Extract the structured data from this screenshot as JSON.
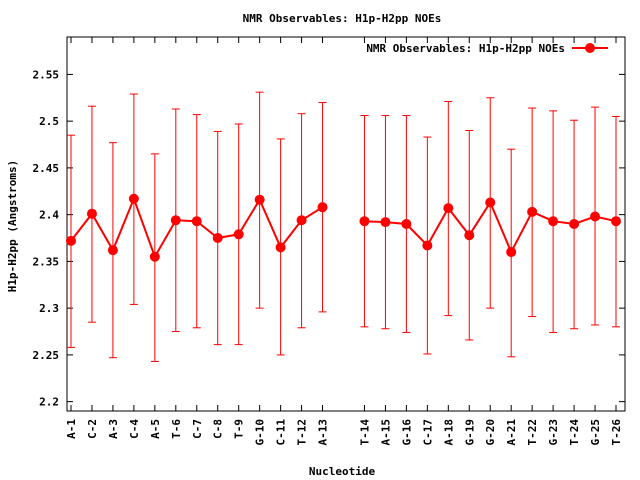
{
  "chart_data": {
    "type": "line",
    "title": "NMR Observables: H1p-H2pp NOEs",
    "xlabel": "Nucleotide",
    "ylabel": "H1p-H2pp (Angstroms)",
    "ylim": [
      2.19,
      2.59
    ],
    "yticks": [
      "2.2",
      "2.25",
      "2.3",
      "2.35",
      "2.4",
      "2.45",
      "2.5",
      "2.55"
    ],
    "legend_position": "top-right",
    "color": "#ff0000",
    "categories": [
      "A-1",
      "C-2",
      "A-3",
      "C-4",
      "A-5",
      "T-6",
      "C-7",
      "C-8",
      "T-9",
      "G-10",
      "C-11",
      "T-12",
      "A-13",
      "T-14",
      "A-15",
      "G-16",
      "C-17",
      "A-18",
      "G-19",
      "G-20",
      "A-21",
      "T-22",
      "G-23",
      "T-24",
      "G-25",
      "T-26"
    ],
    "x": [
      1,
      2,
      3,
      4,
      5,
      6,
      7,
      8,
      9,
      10,
      11,
      12,
      13,
      15,
      16,
      17,
      18,
      19,
      20,
      21,
      22,
      23,
      24,
      25,
      26,
      27
    ],
    "xlim": [
      1,
      27
    ],
    "series": [
      {
        "name": "NMR Observables: H1p-H2pp NOEs",
        "values": [
          2.372,
          2.401,
          2.362,
          2.417,
          2.355,
          2.394,
          2.393,
          2.375,
          2.379,
          2.416,
          2.365,
          2.394,
          2.408,
          2.393,
          2.392,
          2.39,
          2.367,
          2.407,
          2.378,
          2.413,
          2.36,
          2.403,
          2.393,
          2.39,
          2.398,
          2.393
        ],
        "err_low": [
          2.258,
          2.285,
          2.247,
          2.304,
          2.243,
          2.275,
          2.279,
          2.261,
          2.261,
          2.3,
          2.25,
          2.279,
          2.296,
          2.28,
          2.278,
          2.274,
          2.251,
          2.292,
          2.266,
          2.3,
          2.248,
          2.291,
          2.274,
          2.278,
          2.282,
          2.28
        ],
        "err_high": [
          2.485,
          2.516,
          2.477,
          2.529,
          2.465,
          2.513,
          2.507,
          2.489,
          2.497,
          2.531,
          2.481,
          2.508,
          2.52,
          2.506,
          2.506,
          2.506,
          2.483,
          2.521,
          2.49,
          2.525,
          2.47,
          2.514,
          2.511,
          2.501,
          2.515,
          2.505
        ]
      }
    ]
  }
}
